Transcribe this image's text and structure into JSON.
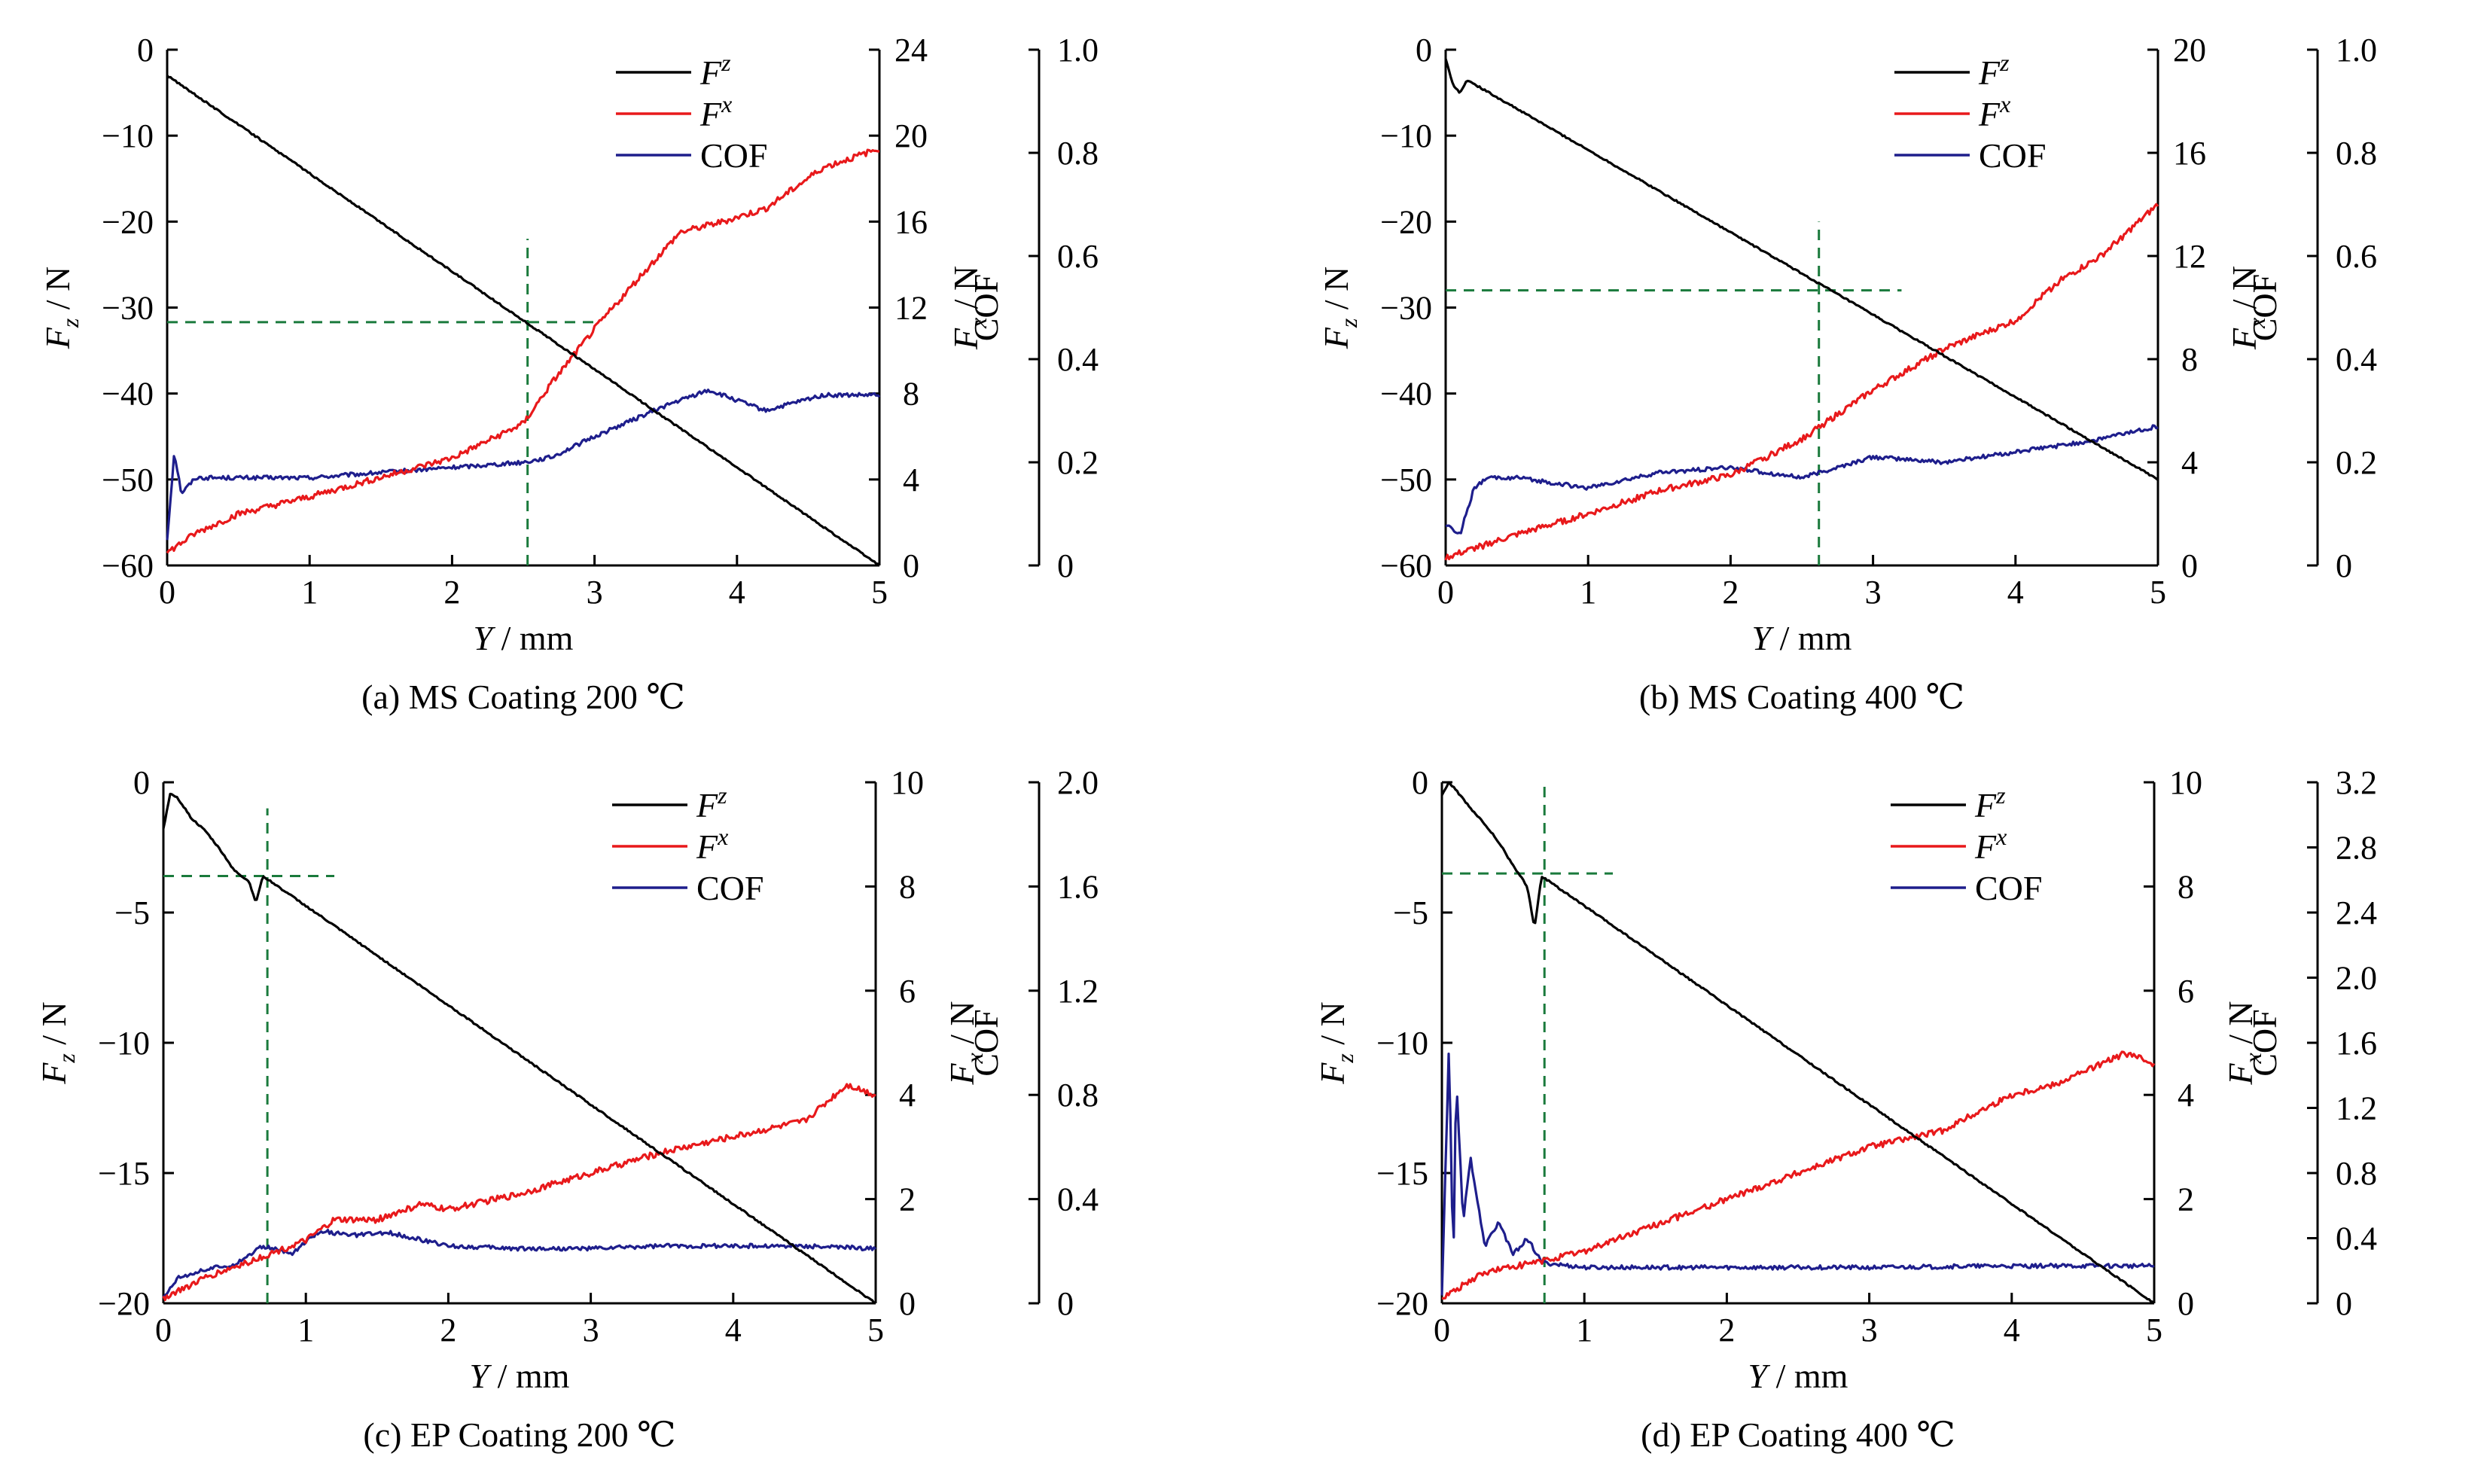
{
  "figure": {
    "colors": {
      "fz": "#000000",
      "fx": "#e8191b",
      "cof": "#1e1e8c",
      "guide": "#1a7a3c",
      "axis": "#000000"
    }
  },
  "chart_data": [
    {
      "id": "a",
      "type": "line",
      "caption": "(a) MS Coating 200 ℃",
      "xlabel": "Y / mm",
      "ylabel_left": "Fz / N",
      "ylabel_right1": "Fx / N",
      "ylabel_right2": "COF",
      "xlim": [
        0,
        5
      ],
      "x_ticks": [
        "0",
        "1",
        "2",
        "3",
        "4",
        "5"
      ],
      "left_axis": {
        "lim": [
          -60,
          0
        ],
        "ticks": [
          "0",
          "−10",
          "−20",
          "−30",
          "−40",
          "−50",
          "−60"
        ]
      },
      "right1_axis": {
        "lim": [
          0,
          24
        ],
        "ticks": [
          "24",
          "20",
          "16",
          "12",
          "8",
          "4",
          "0"
        ]
      },
      "right2_axis": {
        "lim": [
          0,
          1.0
        ],
        "ticks": [
          "1.0",
          "0.8",
          "0.6",
          "0.4",
          "0.2",
          "0"
        ]
      },
      "legend": [
        "Fz",
        "Fx",
        "COF"
      ],
      "guide": {
        "x": 2.53,
        "y_left": -31.7,
        "h_extent": [
          0,
          3.0
        ],
        "v_extent": [
          -60,
          -22
        ]
      },
      "series": [
        {
          "name": "Fz",
          "axis": "left",
          "x": [
            0,
            5
          ],
          "y": [
            -3,
            -60
          ]
        },
        {
          "name": "Fx",
          "axis": "right1",
          "x": [
            0,
            0.2,
            0.5,
            1.0,
            1.5,
            2.0,
            2.5,
            2.7,
            3.0,
            3.3,
            3.6,
            3.9,
            4.2,
            4.6,
            5.0
          ],
          "y": [
            0.6,
            1.5,
            2.4,
            3.2,
            4.1,
            5.0,
            6.6,
            8.5,
            11.0,
            13.3,
            15.5,
            16.0,
            16.6,
            18.5,
            19.4
          ]
        },
        {
          "name": "COF",
          "axis": "right2",
          "x": [
            0,
            0.05,
            0.1,
            0.2,
            0.5,
            1.0,
            1.5,
            2.0,
            2.5,
            2.7,
            3.0,
            3.5,
            3.8,
            4.2,
            4.6,
            5.0
          ],
          "y": [
            0.05,
            0.22,
            0.14,
            0.17,
            0.17,
            0.17,
            0.18,
            0.19,
            0.2,
            0.21,
            0.25,
            0.31,
            0.34,
            0.3,
            0.33,
            0.33
          ]
        }
      ]
    },
    {
      "id": "b",
      "type": "line",
      "caption": "(b) MS Coating 400 ℃",
      "xlabel": "Y / mm",
      "ylabel_left": "Fz / N",
      "ylabel_right1": "Fx / N",
      "ylabel_right2": "COF",
      "xlim": [
        0,
        5
      ],
      "x_ticks": [
        "0",
        "1",
        "2",
        "3",
        "4",
        "5"
      ],
      "left_axis": {
        "lim": [
          -60,
          0
        ],
        "ticks": [
          "0",
          "−10",
          "−20",
          "−30",
          "−40",
          "−50",
          "−60"
        ]
      },
      "right1_axis": {
        "lim": [
          0,
          20
        ],
        "ticks": [
          "20",
          "16",
          "12",
          "8",
          "4",
          "0"
        ]
      },
      "right2_axis": {
        "lim": [
          0,
          1.0
        ],
        "ticks": [
          "1.0",
          "0.8",
          "0.6",
          "0.4",
          "0.2",
          "0"
        ]
      },
      "legend": [
        "Fz",
        "Fx",
        "COF"
      ],
      "guide": {
        "x": 2.62,
        "y_left": -28,
        "h_extent": [
          0,
          3.2
        ],
        "v_extent": [
          -60,
          -20
        ]
      },
      "series": [
        {
          "name": "Fz",
          "axis": "left",
          "x": [
            0,
            0.05,
            0.1,
            0.15,
            0.2,
            5.0
          ],
          "y": [
            -1,
            -4,
            -5,
            -3.5,
            -4,
            -50
          ]
        },
        {
          "name": "Fx",
          "axis": "right1",
          "x": [
            0,
            0.5,
            1.0,
            1.5,
            2.0,
            2.5,
            3.0,
            3.5,
            4.0,
            4.3,
            4.6,
            5.0
          ],
          "y": [
            0.3,
            1.2,
            2.0,
            2.9,
            3.5,
            4.9,
            6.8,
            8.4,
            9.5,
            11.0,
            12.0,
            14.0
          ]
        },
        {
          "name": "COF",
          "axis": "right2",
          "x": [
            0,
            0.1,
            0.2,
            0.3,
            0.5,
            1.0,
            1.5,
            2.0,
            2.5,
            3.0,
            3.5,
            4.0,
            4.5,
            5.0
          ],
          "y": [
            0.08,
            0.06,
            0.15,
            0.17,
            0.17,
            0.15,
            0.18,
            0.19,
            0.17,
            0.21,
            0.2,
            0.22,
            0.24,
            0.27
          ]
        }
      ]
    },
    {
      "id": "c",
      "type": "line",
      "caption": "(c) EP Coating 200 ℃",
      "xlabel": "Y / mm",
      "ylabel_left": "Fz / N",
      "ylabel_right1": "Fx / N",
      "ylabel_right2": "COF",
      "xlim": [
        0,
        5
      ],
      "x_ticks": [
        "0",
        "1",
        "2",
        "3",
        "4",
        "5"
      ],
      "left_axis": {
        "lim": [
          -20,
          0
        ],
        "ticks": [
          "0",
          "−5",
          "−10",
          "−15",
          "−20"
        ]
      },
      "right1_axis": {
        "lim": [
          0,
          10
        ],
        "ticks": [
          "10",
          "8",
          "6",
          "4",
          "2",
          "0"
        ]
      },
      "right2_axis": {
        "lim": [
          0,
          2.0
        ],
        "ticks": [
          "2.0",
          "1.6",
          "1.2",
          "0.8",
          "0.4",
          "0"
        ]
      },
      "legend": [
        "Fz",
        "Fx",
        "COF"
      ],
      "guide": {
        "x": 0.73,
        "y_left": -3.6,
        "h_extent": [
          0,
          1.2
        ],
        "v_extent": [
          -20,
          -1
        ]
      },
      "series": [
        {
          "name": "Fz",
          "axis": "left",
          "x": [
            0,
            0.05,
            0.1,
            0.2,
            0.3,
            0.4,
            0.5,
            0.6,
            0.65,
            0.7,
            5.0
          ],
          "y": [
            -1.8,
            -0.4,
            -0.6,
            -1.4,
            -1.9,
            -2.6,
            -3.4,
            -3.8,
            -4.6,
            -3.6,
            -20
          ]
        },
        {
          "name": "Fx",
          "axis": "right1",
          "x": [
            0,
            0.3,
            0.6,
            0.8,
            1.0,
            1.2,
            1.5,
            1.8,
            2.0,
            2.5,
            3.0,
            3.5,
            4.0,
            4.5,
            4.8,
            5.0
          ],
          "y": [
            0.1,
            0.5,
            0.8,
            1.0,
            1.2,
            1.6,
            1.6,
            1.9,
            1.8,
            2.1,
            2.5,
            2.9,
            3.2,
            3.5,
            4.2,
            4.0
          ]
        },
        {
          "name": "COF",
          "axis": "right2",
          "x": [
            0,
            0.1,
            0.3,
            0.5,
            0.7,
            0.9,
            1.1,
            1.3,
            1.6,
            2.0,
            2.5,
            3.0,
            3.5,
            4.0,
            4.5,
            5.0
          ],
          "y": [
            0.02,
            0.1,
            0.13,
            0.15,
            0.22,
            0.19,
            0.28,
            0.26,
            0.27,
            0.22,
            0.21,
            0.21,
            0.22,
            0.22,
            0.22,
            0.21
          ]
        }
      ]
    },
    {
      "id": "d",
      "type": "line",
      "caption": "(d) EP Coating 400 ℃",
      "xlabel": "Y / mm",
      "ylabel_left": "Fz / N",
      "ylabel_right1": "Fx / N",
      "ylabel_right2": "COF",
      "xlim": [
        0,
        5
      ],
      "x_ticks": [
        "0",
        "1",
        "2",
        "3",
        "4",
        "5"
      ],
      "left_axis": {
        "lim": [
          -20,
          0
        ],
        "ticks": [
          "0",
          "−5",
          "−10",
          "−15",
          "−20"
        ]
      },
      "right1_axis": {
        "lim": [
          0,
          10
        ],
        "ticks": [
          "10",
          "8",
          "6",
          "4",
          "2",
          "0"
        ]
      },
      "right2_axis": {
        "lim": [
          0,
          3.2
        ],
        "ticks": [
          "3.2",
          "2.8",
          "2.4",
          "2.0",
          "1.6",
          "1.2",
          "0.8",
          "0.4",
          "0"
        ]
      },
      "legend": [
        "Fz",
        "Fx",
        "COF"
      ],
      "guide": {
        "x": 0.72,
        "y_left": -3.5,
        "h_extent": [
          0,
          1.2
        ],
        "v_extent": [
          -20,
          0
        ]
      },
      "series": [
        {
          "name": "Fz",
          "axis": "left",
          "x": [
            0,
            0.05,
            0.1,
            0.2,
            0.3,
            0.4,
            0.5,
            0.6,
            0.65,
            0.7,
            5.0
          ],
          "y": [
            -0.5,
            0,
            -0.3,
            -1.0,
            -1.6,
            -2.3,
            -3.2,
            -4.0,
            -5.6,
            -3.6,
            -20
          ]
        },
        {
          "name": "Fx",
          "axis": "right1",
          "x": [
            0,
            0.3,
            0.5,
            0.7,
            1.0,
            1.5,
            2.0,
            2.5,
            3.0,
            3.5,
            4.0,
            4.3,
            4.8,
            5.0
          ],
          "y": [
            0.1,
            0.6,
            0.7,
            0.8,
            1.0,
            1.5,
            2.0,
            2.5,
            3.0,
            3.3,
            4.0,
            4.2,
            4.8,
            4.6
          ]
        },
        {
          "name": "COF",
          "axis": "right2",
          "x": [
            0,
            0.05,
            0.08,
            0.1,
            0.15,
            0.2,
            0.3,
            0.4,
            0.5,
            0.6,
            0.7,
            1.0,
            2.0,
            3.0,
            4.0,
            5.0
          ],
          "y": [
            0.05,
            1.6,
            0.2,
            1.4,
            0.5,
            0.9,
            0.35,
            0.5,
            0.3,
            0.4,
            0.25,
            0.22,
            0.22,
            0.22,
            0.23,
            0.23
          ]
        }
      ]
    }
  ]
}
